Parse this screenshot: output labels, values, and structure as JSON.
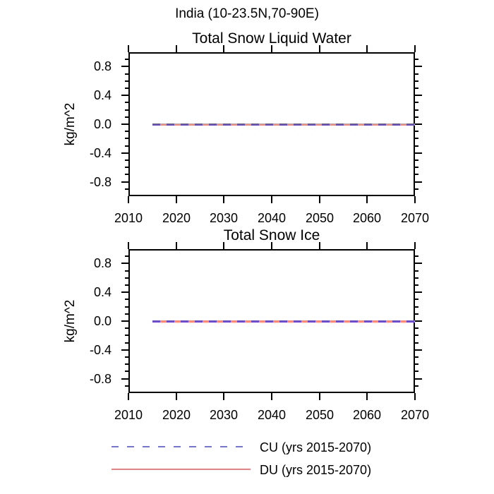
{
  "main_title": "India (10-23.5N,70-90E)",
  "colors": {
    "axis": "#000000",
    "cu_blue": "#7373e1",
    "du_red": "#f28080",
    "plot_dash_purple": "#6a4ecf",
    "plot_gap_salmon": "#ff8875"
  },
  "legend": {
    "items": [
      {
        "label": "CU (yrs 2015-2070)",
        "style": "dashed",
        "color": "#7373e1"
      },
      {
        "label": "DU (yrs 2015-2070)",
        "style": "solid",
        "color": "#f28080"
      }
    ]
  },
  "chart_data": [
    {
      "type": "line",
      "title": "Total Snow Liquid Water",
      "xlabel": "",
      "ylabel": "kg/m^2",
      "xlim": [
        2010,
        2070
      ],
      "ylim": [
        -1.0,
        1.0
      ],
      "grid": false,
      "xticks": [
        2010,
        2020,
        2030,
        2040,
        2050,
        2060,
        2070
      ],
      "xtick_labels": [
        "2010",
        "2020",
        "2030",
        "2040",
        "2050",
        "2060",
        "2070"
      ],
      "yticks": [
        0.8,
        0.4,
        0.0,
        -0.4,
        -0.8
      ],
      "ytick_labels": [
        "0.8",
        "0.4",
        "0.0",
        "-0.4",
        "-0.8"
      ],
      "yminor_step": 0.1,
      "series": [
        {
          "name": "CU (yrs 2015-2070)",
          "style": "dashed",
          "color": "#7373e1",
          "x": [
            2015,
            2070
          ],
          "values": [
            0.0,
            0.0
          ]
        },
        {
          "name": "DU (yrs 2015-2070)",
          "style": "solid",
          "color": "#f28080",
          "x": [
            2015,
            2070
          ],
          "values": [
            0.0,
            0.0
          ]
        }
      ]
    },
    {
      "type": "line",
      "title": "Total Snow Ice",
      "xlabel": "",
      "ylabel": "kg/m^2",
      "xlim": [
        2010,
        2070
      ],
      "ylim": [
        -1.0,
        1.0
      ],
      "grid": false,
      "xticks": [
        2010,
        2020,
        2030,
        2040,
        2050,
        2060,
        2070
      ],
      "xtick_labels": [
        "2010",
        "2020",
        "2030",
        "2040",
        "2050",
        "2060",
        "2070"
      ],
      "yticks": [
        0.8,
        0.4,
        0.0,
        -0.4,
        -0.8
      ],
      "ytick_labels": [
        "0.8",
        "0.4",
        "0.0",
        "-0.4",
        "-0.8"
      ],
      "yminor_step": 0.1,
      "series": [
        {
          "name": "CU (yrs 2015-2070)",
          "style": "dashed",
          "color": "#7373e1",
          "x": [
            2015,
            2070
          ],
          "values": [
            0.0,
            0.0
          ]
        },
        {
          "name": "DU (yrs 2015-2070)",
          "style": "solid",
          "color": "#f28080",
          "x": [
            2015,
            2070
          ],
          "values": [
            0.0,
            0.0
          ]
        }
      ]
    }
  ]
}
